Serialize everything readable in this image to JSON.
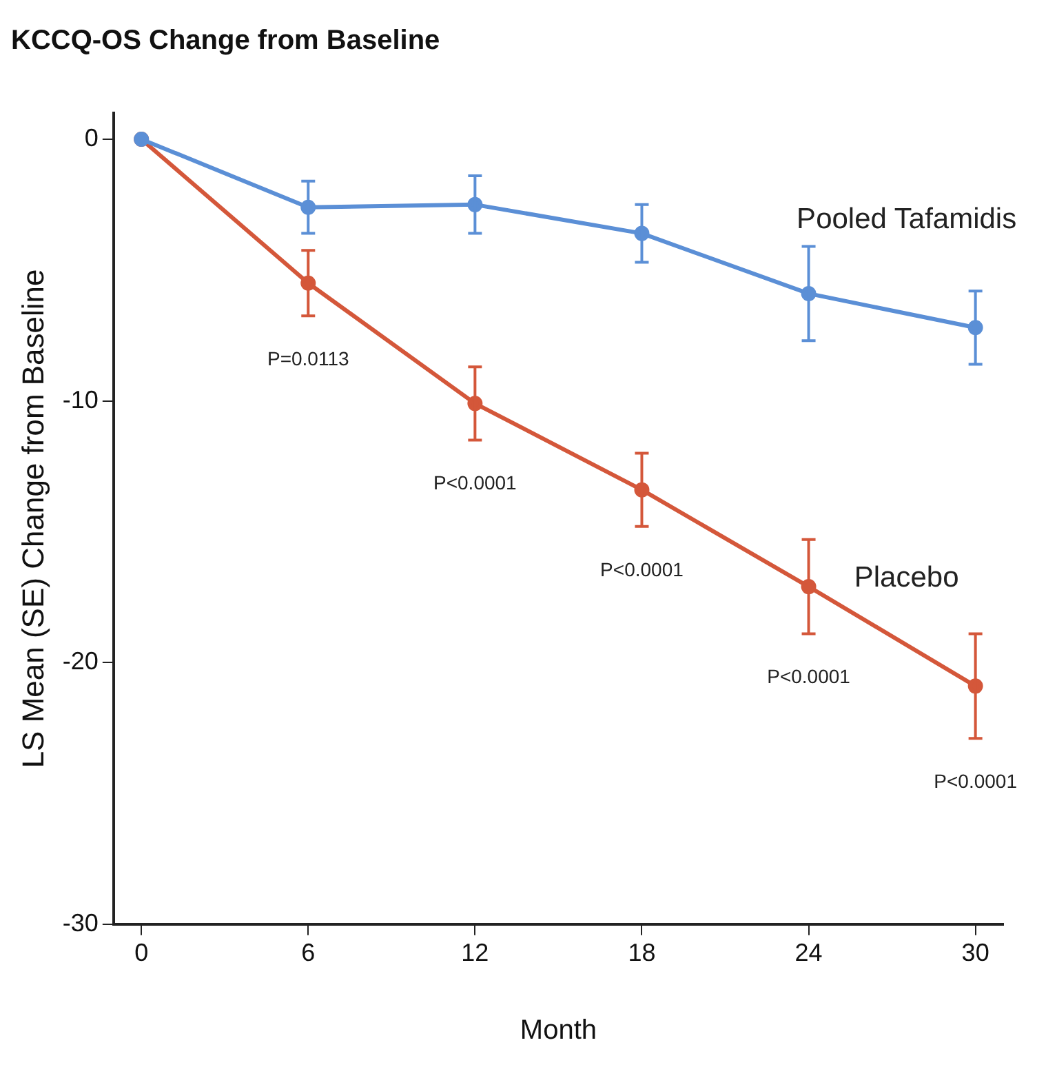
{
  "chart_data": {
    "type": "line",
    "title": "KCCQ-OS Change from Baseline",
    "xlabel": "Month",
    "ylabel": "LS Mean (SE) Change from Baseline",
    "x": [
      0,
      6,
      12,
      18,
      24,
      30
    ],
    "series": [
      {
        "name": "Pooled Tafamidis",
        "color": "#5b8fd6",
        "values": [
          0,
          -2.6,
          -2.5,
          -3.6,
          -5.9,
          -7.2
        ],
        "errors": [
          null,
          1.0,
          1.1,
          1.1,
          1.8,
          1.4
        ]
      },
      {
        "name": "Placebo",
        "color": "#d4573a",
        "values": [
          0,
          -5.5,
          -10.1,
          -13.4,
          -17.1,
          -20.9
        ],
        "errors": [
          null,
          1.25,
          1.4,
          1.4,
          1.8,
          2.0
        ]
      }
    ],
    "annotations": [
      "P=0.0113",
      "P<0.0001",
      "P<0.0001",
      "P<0.0001",
      "P<0.0001"
    ],
    "xlim": [
      -1,
      31
    ],
    "xticks": [
      0,
      6,
      12,
      18,
      24,
      30
    ],
    "ylim": [
      -30,
      1
    ],
    "yticks": [
      -30,
      -20,
      -10,
      0
    ],
    "grid": false,
    "legend": false,
    "marker": "circle",
    "line_style": "solid"
  }
}
